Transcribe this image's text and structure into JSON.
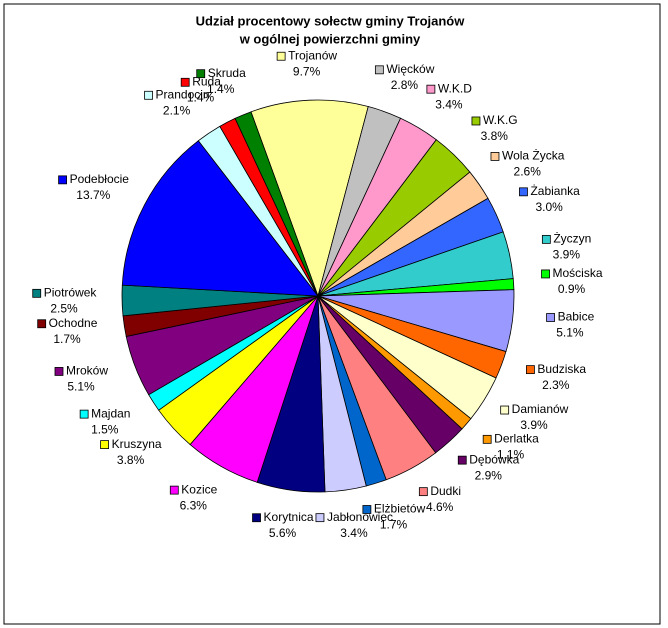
{
  "chart_data": {
    "type": "pie",
    "title": [
      "Udział procentowy  sołectw gminy Trojanów",
      "w ogólnej powierzchni gminy"
    ],
    "categories": [
      "Trojanów",
      "Więcków",
      "W.K.D",
      "W.K.G",
      "Wola Życka",
      "Żabianka",
      "Życzyn",
      "Mościska",
      "Babice",
      "Budziska",
      "Damianów",
      "Derlatka",
      "Dębówka",
      "Dudki",
      "Elżbietów",
      "Jabłonowiec",
      "Korytnica",
      "Kozice",
      "Kruszyna",
      "Majdan",
      "Mroków",
      "Ochodne",
      "Piotrówek",
      "Podebłocie",
      "Prandocin",
      "Ruda",
      "Skruda"
    ],
    "values": [
      9.7,
      2.8,
      3.4,
      3.8,
      2.6,
      3.0,
      3.9,
      0.9,
      5.1,
      2.3,
      3.9,
      1.1,
      2.9,
      4.6,
      1.7,
      3.4,
      5.6,
      6.3,
      3.8,
      1.5,
      5.1,
      1.7,
      2.5,
      13.7,
      2.1,
      1.4,
      1.4
    ],
    "value_labels": [
      "9.7%",
      "2.8%",
      "3.4%",
      "3.8%",
      "2.6%",
      "3.0%",
      "3.9%",
      "0.9%",
      "5.1%",
      "2.3%",
      "3.9%",
      "1.1%",
      "2.9%",
      "4.6%",
      "1.7%",
      "3.4%",
      "5.6%",
      "6.3%",
      "3.8%",
      "1.5%",
      "5.1%",
      "1.7%",
      "2.5%",
      "13.7%",
      "2.1%",
      "1.4%",
      "1.4%"
    ],
    "colors": [
      "#ffff99",
      "#c0c0c0",
      "#ff99cc",
      "#99cc00",
      "#ffcc99",
      "#3366ff",
      "#33cccc",
      "#00ff00",
      "#9999ff",
      "#ff6600",
      "#ffffcc",
      "#ff9900",
      "#660066",
      "#ff8080",
      "#0066cc",
      "#ccccff",
      "#000080",
      "#ff00ff",
      "#ffff00",
      "#00ffff",
      "#800080",
      "#800000",
      "#008080",
      "#0000ff",
      "#ccffff",
      "#ff0000",
      "#008000"
    ]
  }
}
